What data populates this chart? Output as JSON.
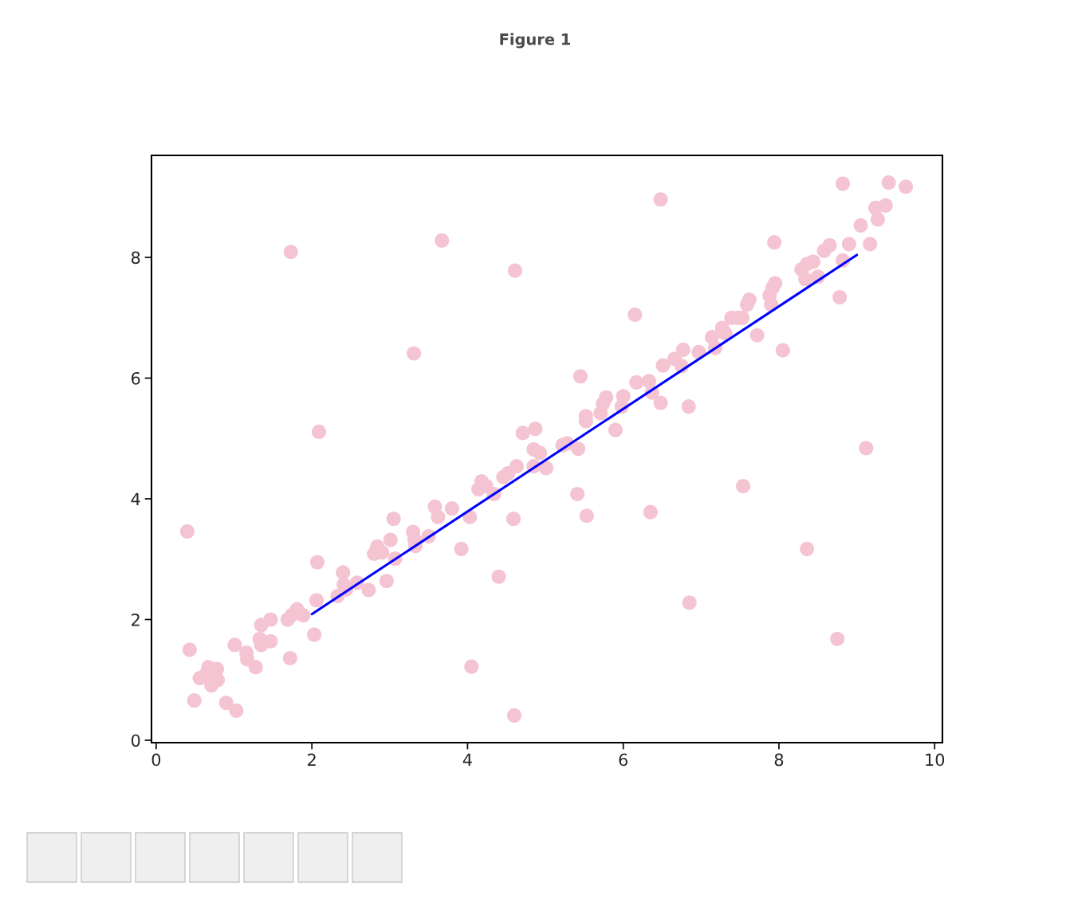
{
  "chart_data": {
    "type": "scatter",
    "title": "Figure 1",
    "xlim": [
      -0.06,
      10.1
    ],
    "ylim": [
      -0.04,
      9.69
    ],
    "xticks": [
      0,
      2,
      4,
      6,
      8,
      10
    ],
    "yticks": [
      0,
      2,
      4,
      6,
      8
    ],
    "grid": false,
    "series": [
      {
        "type": "scatter",
        "marker": "circle",
        "color": "#f5c4d2",
        "x": [
          0.4,
          0.43,
          0.49,
          0.56,
          0.67,
          0.78,
          0.71,
          0.79,
          0.63,
          0.9,
          1.03,
          1.01,
          1.16,
          1.17,
          1.28,
          1.33,
          1.35,
          1.35,
          1.47,
          1.47,
          1.73,
          1.72,
          1.69,
          1.74,
          1.81,
          1.89,
          2.03,
          2.06,
          2.07,
          2.09,
          2.33,
          2.4,
          2.41,
          2.44,
          2.58,
          2.73,
          2.8,
          2.84,
          2.9,
          2.96,
          3.01,
          3.05,
          3.07,
          3.31,
          3.3,
          3.32,
          3.33,
          3.5,
          3.58,
          3.62,
          3.67,
          3.8,
          3.92,
          4.03,
          4.05,
          4.14,
          4.18,
          4.24,
          4.34,
          4.4,
          4.46,
          4.52,
          4.6,
          4.61,
          4.59,
          4.63,
          4.71,
          4.87,
          4.85,
          4.85,
          4.93,
          5.01,
          5.22,
          5.28,
          5.42,
          5.41,
          5.45,
          5.52,
          5.52,
          5.53,
          5.71,
          5.74,
          5.78,
          5.9,
          5.98,
          6.0,
          6.15,
          6.17,
          6.33,
          6.37,
          6.35,
          6.48,
          6.48,
          6.51,
          6.66,
          6.77,
          6.75,
          6.84,
          6.85,
          6.97,
          7.14,
          7.18,
          7.27,
          7.31,
          7.39,
          7.47,
          7.53,
          7.54,
          7.59,
          7.62,
          7.72,
          7.88,
          7.9,
          7.92,
          7.95,
          7.94,
          8.05,
          8.29,
          8.34,
          8.36,
          8.36,
          8.44,
          8.5,
          8.58,
          8.65,
          8.78,
          8.75,
          8.82,
          8.82,
          8.9,
          9.05,
          9.12,
          9.17,
          9.24,
          9.27,
          9.37,
          9.41,
          9.63
        ],
        "values": [
          3.46,
          1.5,
          0.66,
          1.03,
          1.21,
          1.18,
          0.91,
          1.0,
          1.08,
          0.62,
          0.49,
          1.58,
          1.45,
          1.34,
          1.21,
          1.68,
          1.91,
          1.58,
          2.0,
          1.64,
          8.09,
          1.36,
          2.0,
          2.07,
          2.17,
          2.07,
          1.75,
          2.32,
          2.95,
          5.11,
          2.39,
          2.78,
          2.58,
          2.5,
          2.61,
          2.49,
          3.09,
          3.21,
          3.11,
          2.64,
          3.32,
          3.67,
          3.01,
          6.41,
          3.45,
          3.32,
          3.22,
          3.38,
          3.87,
          3.7,
          8.28,
          3.84,
          3.17,
          3.7,
          1.22,
          4.16,
          4.29,
          4.21,
          4.08,
          2.71,
          4.36,
          4.42,
          0.41,
          7.78,
          3.67,
          4.54,
          5.09,
          5.16,
          4.82,
          4.54,
          4.76,
          4.51,
          4.89,
          4.92,
          4.83,
          4.08,
          6.03,
          5.29,
          5.37,
          3.72,
          5.42,
          5.58,
          5.68,
          5.14,
          5.53,
          5.7,
          7.05,
          5.93,
          5.95,
          5.76,
          3.78,
          5.59,
          8.96,
          6.21,
          6.32,
          6.47,
          6.2,
          5.53,
          2.28,
          6.43,
          6.68,
          6.5,
          6.83,
          6.74,
          7.0,
          7.0,
          7.0,
          4.21,
          7.22,
          7.3,
          6.71,
          7.37,
          7.22,
          7.5,
          7.57,
          8.25,
          6.46,
          7.8,
          7.64,
          7.89,
          3.17,
          7.93,
          7.68,
          8.11,
          8.2,
          7.34,
          1.68,
          9.22,
          7.95,
          8.22,
          8.53,
          4.84,
          8.22,
          8.82,
          8.63,
          8.86,
          9.24,
          9.17
        ]
      },
      {
        "type": "line",
        "color": "#0000ff",
        "x": [
          2,
          9
        ],
        "values": [
          2.09,
          8.04
        ]
      }
    ]
  }
}
